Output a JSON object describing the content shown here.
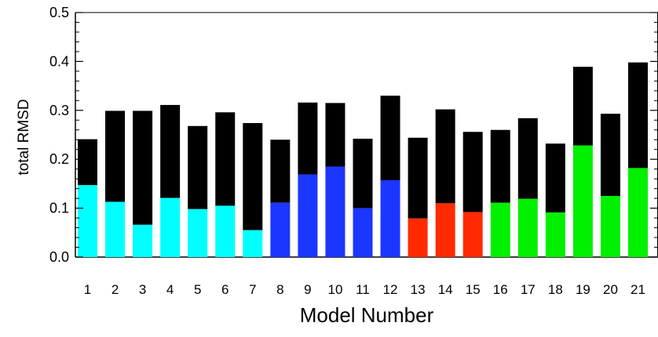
{
  "chart_data": {
    "type": "bar",
    "stacked": true,
    "xlabel": "Model Number",
    "ylabel": "total RMSD",
    "ylim": [
      0,
      0.5
    ],
    "yticks": [
      "0.0",
      "0.1",
      "0.2",
      "0.3",
      "0.4",
      "0.5"
    ],
    "grid": false,
    "categories": [
      "1",
      "2",
      "3",
      "4",
      "5",
      "6",
      "7",
      "8",
      "9",
      "10",
      "11",
      "12",
      "13",
      "14",
      "15",
      "16",
      "17",
      "18",
      "19",
      "20",
      "21"
    ],
    "series": [
      {
        "values": [
          0.147,
          0.113,
          0.066,
          0.121,
          0.098,
          0.105,
          0.055,
          0.111,
          0.169,
          0.185,
          0.1,
          0.157,
          0.079,
          0.11,
          0.092,
          0.111,
          0.119,
          0.091,
          0.228,
          0.125,
          0.182
        ]
      },
      {
        "values": [
          0.094,
          0.186,
          0.233,
          0.19,
          0.17,
          0.191,
          0.219,
          0.129,
          0.147,
          0.13,
          0.142,
          0.173,
          0.165,
          0.192,
          0.164,
          0.149,
          0.165,
          0.141,
          0.161,
          0.168,
          0.216
        ]
      }
    ],
    "totals": [
      0.241,
      0.299,
      0.299,
      0.311,
      0.268,
      0.296,
      0.274,
      0.24,
      0.316,
      0.315,
      0.242,
      0.33,
      0.244,
      0.302,
      0.256,
      0.26,
      0.284,
      0.232,
      0.389,
      0.293,
      0.398
    ],
    "colors": {
      "bottom": [
        "#00ffff",
        "#00ffff",
        "#00ffff",
        "#00ffff",
        "#00ffff",
        "#00ffff",
        "#00ffff",
        "#1a36ff",
        "#1a36ff",
        "#1a36ff",
        "#1a36ff",
        "#1a36ff",
        "#ff2a00",
        "#ff2a00",
        "#ff2a00",
        "#00f000",
        "#00f000",
        "#00f000",
        "#00f000",
        "#00f000",
        "#00f000"
      ],
      "top": "#000000",
      "axis": "#000000"
    }
  }
}
